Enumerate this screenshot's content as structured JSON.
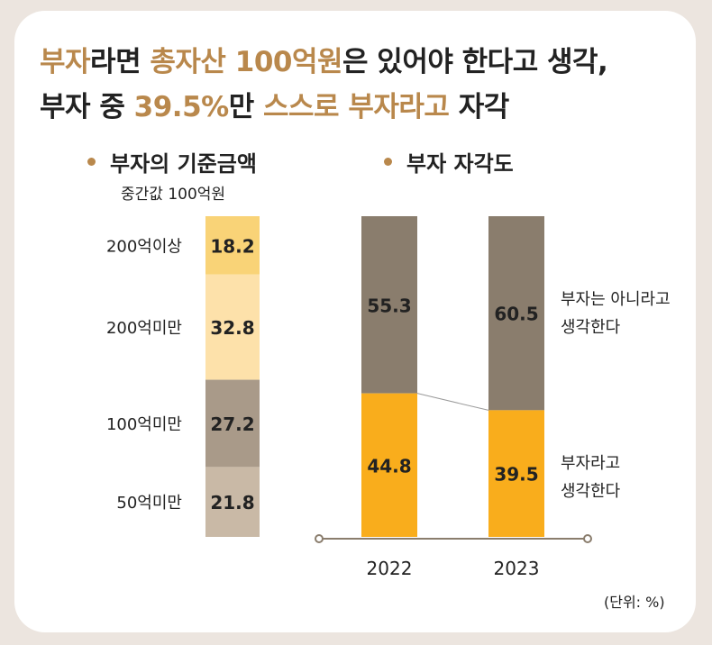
{
  "title": {
    "line1": [
      {
        "text": "부자",
        "highlight": true
      },
      {
        "text": "라면 ",
        "highlight": false
      },
      {
        "text": "총자산 100억원",
        "highlight": true
      },
      {
        "text": "은 있어야 한다고 생각,",
        "highlight": false
      }
    ],
    "line2": [
      {
        "text": "부자 중 ",
        "highlight": false
      },
      {
        "text": "39.5%",
        "highlight": true
      },
      {
        "text": "만 ",
        "highlight": false
      },
      {
        "text": "스스로 부자라고",
        "highlight": true
      },
      {
        "text": " 자각",
        "highlight": false
      }
    ]
  },
  "colors": {
    "highlight": "#b9884c",
    "segments": [
      "#f9d377",
      "#fde1aa",
      "#a99a89",
      "#c9b9a6"
    ],
    "not_rich": "#8a7d6d",
    "rich": "#f9ad1c",
    "axis": "#8a7d6d"
  },
  "unit_note": "(단위: %)",
  "chart_data": [
    {
      "type": "bar",
      "subtype": "stacked-single",
      "title": "부자의 기준금액",
      "subtitle": "중간값 100억원",
      "categories": [
        "200억이상",
        "200억미만",
        "100억미만",
        "50억미만"
      ],
      "values": [
        18.2,
        32.8,
        27.2,
        21.8
      ],
      "value_labels": [
        "18.2",
        "32.8",
        "27.2",
        "21.8"
      ],
      "unit": "%"
    },
    {
      "type": "bar",
      "subtype": "stacked",
      "title": "부자 자각도",
      "categories": [
        "2022",
        "2023"
      ],
      "series": [
        {
          "name": "부자는 아니라고 생각한다",
          "label_lines": [
            "부자는 아니라고",
            "생각한다"
          ],
          "values": [
            55.3,
            60.5
          ],
          "value_labels": [
            "55.3",
            "60.5"
          ]
        },
        {
          "name": "부자라고 생각한다",
          "label_lines": [
            "부자라고",
            "생각한다"
          ],
          "values": [
            44.8,
            39.5
          ],
          "value_labels": [
            "44.8",
            "39.5"
          ]
        }
      ],
      "unit": "%"
    }
  ]
}
